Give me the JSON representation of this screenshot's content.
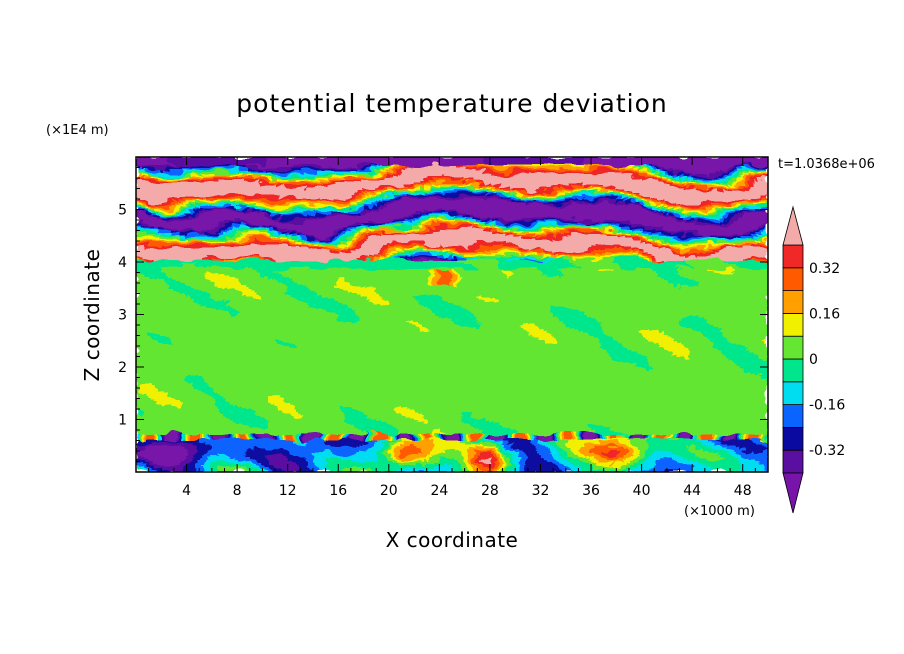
{
  "chart_data": {
    "type": "heatmap",
    "title": "potential temperature deviation",
    "xlabel": "X coordinate",
    "ylabel": "Z coordinate",
    "x_unit": "(×1000 m)",
    "y_unit": "(×1E4 m)",
    "time_label": "t=1.0368e+06",
    "xlim": [
      0,
      50
    ],
    "ylim": [
      0,
      6
    ],
    "x_ticks": [
      "4",
      "8",
      "12",
      "16",
      "20",
      "24",
      "28",
      "32",
      "36",
      "40",
      "44",
      "48"
    ],
    "x_tick_values": [
      4,
      8,
      12,
      16,
      20,
      24,
      28,
      32,
      36,
      40,
      44,
      48
    ],
    "y_ticks": [
      "1",
      "2",
      "3",
      "4",
      "5"
    ],
    "y_tick_values": [
      1,
      2,
      3,
      4,
      5
    ],
    "colorbar": {
      "levels": [
        -0.4,
        -0.32,
        -0.24,
        -0.16,
        -0.08,
        0,
        0.08,
        0.16,
        0.24,
        0.32,
        0.4
      ],
      "labels": [
        "0.32",
        "0.16",
        "0",
        "-0.16",
        "-0.32"
      ],
      "label_values": [
        0.32,
        0.16,
        0,
        -0.16,
        -0.32
      ],
      "colors": [
        "#5a0fa0",
        "#0a0aa0",
        "#0a64ff",
        "#00dcf0",
        "#00e68c",
        "#64e632",
        "#f0f000",
        "#ffa000",
        "#ff5a00",
        "#f02828"
      ],
      "over_color": "#f5aaaa",
      "under_color": "#7814aa",
      "extend": "both"
    },
    "regions": [
      {
        "zone": "upper",
        "z_range": [
          4.0,
          6.0
        ],
        "pattern": "alternating bands near -0.4 and +0.4"
      },
      {
        "zone": "middle",
        "z_range": [
          0.7,
          4.0
        ],
        "pattern": "mostly 0 to +0.08 with patches of -0.08 to 0"
      },
      {
        "zone": "lower",
        "z_range": [
          0,
          0.7
        ],
        "pattern": "mixed, warm plumes up to +0.4 near x=20-24, 28, 36-40"
      }
    ]
  }
}
